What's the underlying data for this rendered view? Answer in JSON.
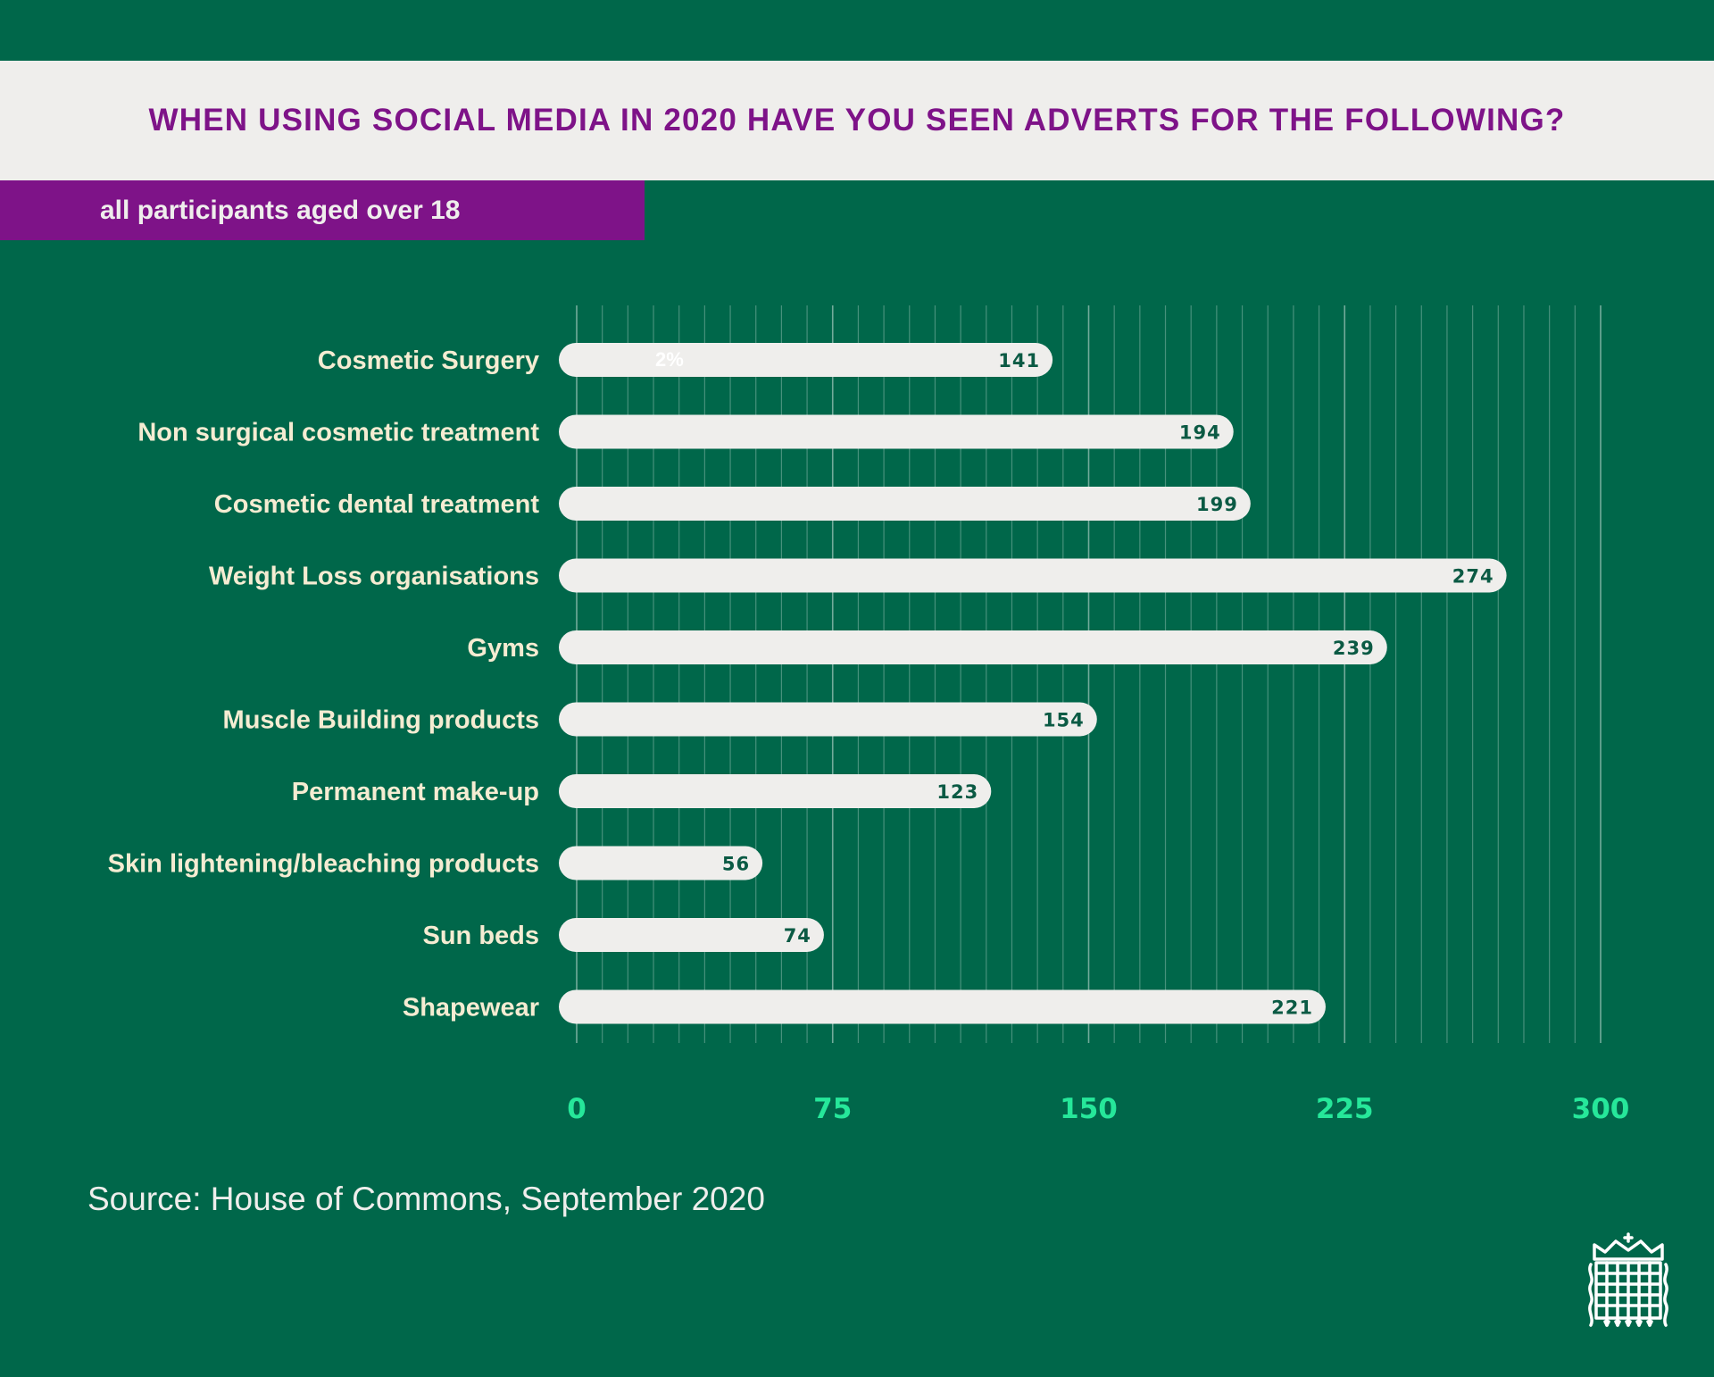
{
  "header": {
    "title": "When using social media in 2020 have you seen adverts for the following?",
    "subtitle": "all participants aged over 18"
  },
  "footer": {
    "source": "Source: House of Commons, September 2020"
  },
  "colors": {
    "background": "#00674a",
    "title_band": "#efeeec",
    "accent_purple": "#7e1388",
    "bar": "#efeeec",
    "tick_text": "#26e79a",
    "category_text": "#f5ecd2"
  },
  "logo": {
    "icon": "portcullis-icon"
  },
  "chart_data": {
    "type": "bar",
    "orientation": "horizontal",
    "categories": [
      "Cosmetic Surgery",
      "Non surgical cosmetic treatment",
      "Cosmetic dental treatment",
      "Weight Loss organisations",
      "Gyms",
      "Muscle Building products",
      "Permanent make-up",
      "Skin lightening/bleaching products",
      "Sun beds",
      "Shapewear"
    ],
    "values": [
      141,
      194,
      199,
      274,
      239,
      154,
      123,
      56,
      74,
      221
    ],
    "xlim": [
      0,
      300
    ],
    "xticks": [
      "0",
      "75",
      "150",
      "225",
      "300"
    ],
    "annotation": {
      "category": "Cosmetic Surgery",
      "text": "2%"
    },
    "grid": true
  }
}
